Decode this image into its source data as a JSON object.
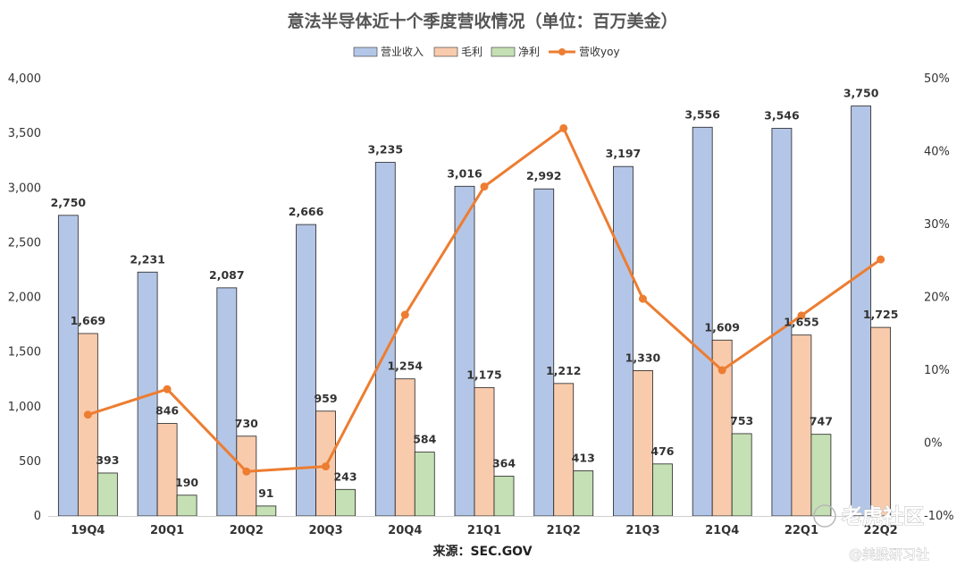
{
  "chart_data": {
    "type": "bar",
    "title": "意法半导体近十个季度营收情况（单位：百万美金）",
    "categories": [
      "19Q4",
      "20Q1",
      "20Q2",
      "20Q3",
      "20Q4",
      "21Q1",
      "21Q2",
      "21Q3",
      "21Q4",
      "22Q1",
      "22Q2"
    ],
    "series": [
      {
        "name": "营业收入",
        "kind": "bar",
        "axis": "left",
        "color": "#b4c6e7",
        "values": [
          2750,
          2231,
          2087,
          2666,
          3235,
          3016,
          2992,
          3197,
          3556,
          3546,
          3750
        ],
        "labels": [
          "2,750",
          "2,231",
          "2,087",
          "2,666",
          "3,235",
          "3,016",
          "2,992",
          "3,197",
          "3,556",
          "3,546",
          "3,750"
        ]
      },
      {
        "name": "毛利",
        "kind": "bar",
        "axis": "left",
        "color": "#f8cbad",
        "values": [
          1669,
          846,
          730,
          959,
          1254,
          1175,
          1212,
          1330,
          1609,
          1655,
          1725
        ],
        "labels": [
          "1,669",
          "846",
          "730",
          "959",
          "1,254",
          "1,175",
          "1,212",
          "1,330",
          "1,609",
          "1,655",
          "1,725"
        ]
      },
      {
        "name": "净利",
        "kind": "bar",
        "axis": "left",
        "color": "#c5e0b4",
        "values": [
          393,
          190,
          91,
          243,
          584,
          364,
          413,
          476,
          753,
          747,
          null
        ],
        "labels": [
          "393",
          "190",
          "91",
          "243",
          "584",
          "364",
          "413",
          "476",
          "753",
          "747",
          ""
        ]
      },
      {
        "name": "营收yoy",
        "kind": "line",
        "axis": "right",
        "color": "#ed7d31",
        "values": [
          3.9,
          7.4,
          -3.9,
          -3.2,
          17.6,
          35.2,
          43.2,
          19.8,
          10.0,
          17.5,
          25.2
        ]
      }
    ],
    "y_left": {
      "min": 0,
      "max": 4000,
      "step": 500,
      "ticks": [
        "0",
        "500",
        "1,000",
        "1,500",
        "2,000",
        "2,500",
        "3,000",
        "3,500",
        "4,000"
      ]
    },
    "y_right": {
      "min": -10,
      "max": 50,
      "step": 10,
      "ticks": [
        "-10%",
        "0%",
        "10%",
        "20%",
        "30%",
        "40%",
        "50%"
      ]
    },
    "grid": false,
    "legend_position": "top",
    "source": "来源：SEC.GOV"
  },
  "watermark": {
    "line1": "老虎社区",
    "line2": "@美股研习社"
  }
}
